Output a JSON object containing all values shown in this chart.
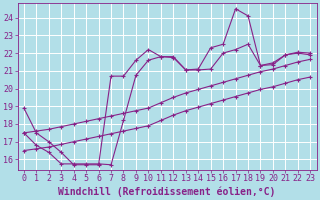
{
  "background_color": "#b2dfe8",
  "grid_color": "#c8e8ec",
  "line_color": "#882288",
  "xlabel": "Windchill (Refroidissement éolien,°C)",
  "xlabel_fontsize": 7,
  "tick_fontsize": 6,
  "xlim": [
    -0.5,
    23.5
  ],
  "ylim": [
    15.4,
    24.8
  ],
  "yticks": [
    16,
    17,
    18,
    19,
    20,
    21,
    22,
    23,
    24
  ],
  "xticks": [
    0,
    1,
    2,
    3,
    4,
    5,
    6,
    7,
    8,
    9,
    10,
    11,
    12,
    13,
    14,
    15,
    16,
    17,
    18,
    19,
    20,
    21,
    22,
    23
  ],
  "series": [
    {
      "x": [
        0,
        1,
        2,
        3,
        4,
        5,
        6,
        7,
        8,
        9,
        10,
        11,
        12,
        13,
        14,
        15,
        16,
        17,
        18,
        19,
        20,
        21,
        22,
        23
      ],
      "y": [
        18.9,
        17.5,
        17.0,
        16.4,
        15.7,
        15.7,
        15.7,
        20.7,
        20.7,
        21.6,
        22.2,
        21.8,
        21.75,
        21.05,
        21.1,
        22.3,
        22.5,
        24.5,
        24.1,
        21.3,
        21.45,
        21.9,
        22.05,
        22.0
      ]
    },
    {
      "x": [
        0,
        1,
        2,
        3,
        4,
        5,
        6,
        7,
        8,
        9,
        10,
        11,
        12,
        13,
        14,
        15,
        16,
        17,
        18,
        19,
        20,
        21,
        22,
        23
      ],
      "y": [
        17.5,
        16.8,
        16.4,
        15.75,
        15.75,
        15.75,
        15.75,
        15.7,
        18.2,
        20.75,
        21.6,
        21.8,
        21.8,
        21.05,
        21.05,
        21.1,
        22.0,
        22.2,
        22.5,
        21.3,
        21.35,
        21.9,
        22.0,
        21.9
      ]
    },
    {
      "x": [
        0,
        1,
        2,
        3,
        4,
        5,
        6,
        7,
        8,
        9,
        10,
        11,
        12,
        13,
        14,
        15,
        16,
        17,
        18,
        19,
        20,
        21,
        22,
        23
      ],
      "y": [
        17.5,
        17.6,
        17.7,
        17.85,
        18.0,
        18.15,
        18.3,
        18.45,
        18.6,
        18.75,
        18.9,
        19.2,
        19.5,
        19.75,
        19.95,
        20.15,
        20.35,
        20.55,
        20.75,
        20.95,
        21.1,
        21.3,
        21.5,
        21.65
      ]
    },
    {
      "x": [
        0,
        1,
        2,
        3,
        4,
        5,
        6,
        7,
        8,
        9,
        10,
        11,
        12,
        13,
        14,
        15,
        16,
        17,
        18,
        19,
        20,
        21,
        22,
        23
      ],
      "y": [
        16.5,
        16.6,
        16.7,
        16.85,
        17.0,
        17.15,
        17.3,
        17.45,
        17.6,
        17.75,
        17.9,
        18.2,
        18.5,
        18.75,
        18.95,
        19.15,
        19.35,
        19.55,
        19.75,
        19.95,
        20.1,
        20.3,
        20.5,
        20.65
      ]
    }
  ]
}
